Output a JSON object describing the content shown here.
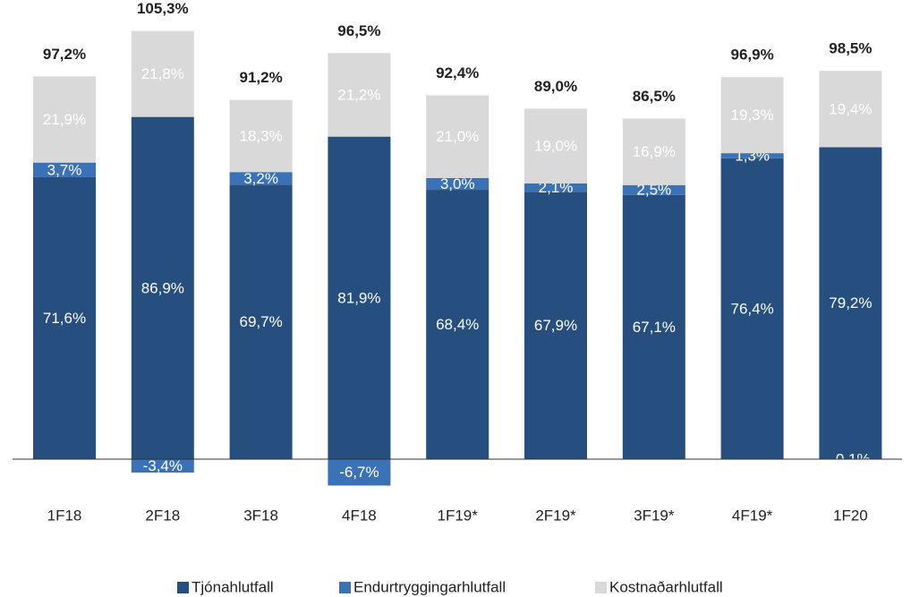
{
  "chart_data": {
    "type": "stacked_bar",
    "categories": [
      "1F18",
      "2F18",
      "3F18",
      "4F18",
      "1F19*",
      "2F19*",
      "3F19*",
      "4F19*",
      "1F20"
    ],
    "series": [
      {
        "name": "Tjónahlutfall",
        "color": "#264f80",
        "label_color": "#ffffff",
        "values": [
          71.6,
          86.9,
          69.7,
          81.9,
          68.4,
          67.9,
          67.1,
          76.4,
          79.2
        ],
        "value_labels": [
          "71,6%",
          "86,9%",
          "69,7%",
          "81,9%",
          "68,4%",
          "67,9%",
          "67,1%",
          "76,4%",
          "79,2%"
        ]
      },
      {
        "name": "Endurtryggingarhlutfall",
        "color": "#3a72b8",
        "label_color": "#ffffff",
        "values": [
          3.7,
          -3.4,
          3.2,
          -6.7,
          3.0,
          2.1,
          2.5,
          1.3,
          -0.1
        ],
        "value_labels": [
          "3,7%",
          "-3,4%",
          "3,2%",
          "-6,7%",
          "3,0%",
          "2,1%",
          "2,5%",
          "1,3%",
          "-0,1%"
        ]
      },
      {
        "name": "Kostnaðarhlutfall",
        "color": "#d9d9d9",
        "label_color": "#ffffff",
        "values": [
          21.9,
          21.8,
          18.3,
          21.2,
          21.0,
          19.0,
          16.9,
          19.3,
          19.4
        ],
        "value_labels": [
          "21,9%",
          "21,8%",
          "18,3%",
          "21,2%",
          "21,0%",
          "19,0%",
          "16,9%",
          "19,3%",
          "19,4%"
        ]
      }
    ],
    "totals": [
      97.2,
      105.3,
      91.2,
      96.5,
      92.4,
      89.0,
      86.5,
      96.9,
      98.5
    ],
    "total_labels": [
      "97,2%",
      "105,3%",
      "91,2%",
      "96,5%",
      "92,4%",
      "89,0%",
      "86,5%",
      "96,9%",
      "98,5%"
    ],
    "legend": "bottom"
  }
}
